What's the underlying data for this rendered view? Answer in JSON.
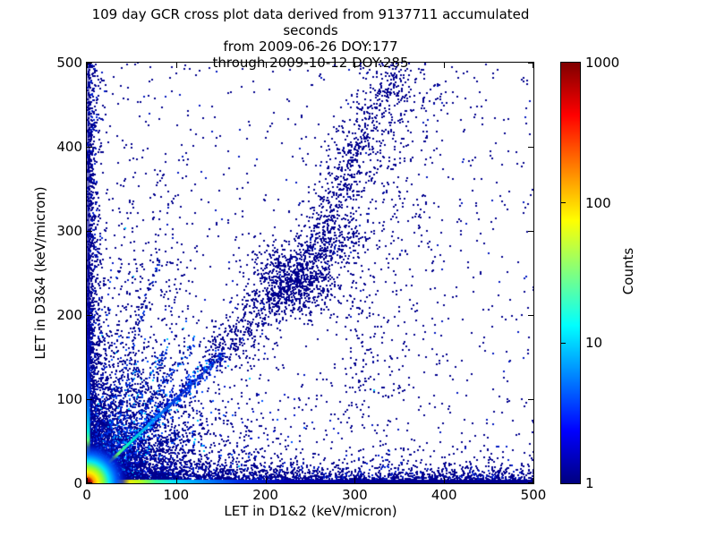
{
  "title": {
    "line1": "109 day GCR cross plot data derived from 9137711 accumulated seconds",
    "line2": "from 2009-06-26 DOY:177",
    "line3": "through 2009-10-12 DOY:285"
  },
  "axes": {
    "xlabel": "LET in D1&2 (keV/micron)",
    "ylabel": "LET in D3&4 (keV/micron)",
    "xticks": [
      "0",
      "100",
      "200",
      "300",
      "400",
      "500"
    ],
    "yticks": [
      "0",
      "100",
      "200",
      "300",
      "400",
      "500"
    ]
  },
  "colorbar": {
    "label": "Counts",
    "ticks": [
      "1000",
      "100",
      "10",
      "1"
    ],
    "colormap": "jet",
    "scale": "log",
    "min": 1,
    "max": 1000
  },
  "chart_data": {
    "type": "heatmap",
    "title": "109 day GCR cross plot data derived from 9137711 accumulated seconds from 2009-06-26 DOY:177 through 2009-10-12 DOY:285",
    "xlabel": "LET in D1&2 (keV/micron)",
    "ylabel": "LET in D3&4 (keV/micron)",
    "xlim": [
      0,
      500
    ],
    "ylim": [
      0,
      500
    ],
    "grid": false,
    "color_scale": {
      "label": "Counts",
      "type": "log",
      "min": 1,
      "max": 1000,
      "colormap": "jet"
    },
    "features": [
      {
        "type": "uniform",
        "n": 980,
        "colors": [
          [
            "#00008E",
            0.9
          ],
          [
            "#0018C0",
            0.1
          ]
        ]
      },
      {
        "type": "exp_cloud",
        "n": 4300,
        "sx": 55,
        "sy": 52,
        "colors": [
          [
            "#00008E",
            0.8
          ],
          [
            "#0016C8",
            0.13
          ],
          [
            "#0050FF",
            0.05
          ],
          [
            "#00C8FF",
            0.02
          ]
        ]
      },
      {
        "type": "exp_cloud",
        "n": 2700,
        "sx": 17,
        "sy": 16,
        "colors": [
          [
            "#0000A0",
            0.5
          ],
          [
            "#0020DC",
            0.27
          ],
          [
            "#0064FF",
            0.15
          ],
          [
            "#00C8FF",
            0.08
          ]
        ]
      },
      {
        "type": "edge_x",
        "n": 2600,
        "yscale": 8,
        "xpow": 1.35,
        "colors": [
          [
            "#00008E",
            0.85
          ],
          [
            "#0020D0",
            0.15
          ]
        ]
      },
      {
        "type": "edge_y",
        "n": 1600,
        "xscale": 5,
        "ypow": 1.6,
        "colors": [
          [
            "#00008E",
            0.85
          ],
          [
            "#0020D0",
            0.15
          ]
        ]
      },
      {
        "type": "band",
        "from": [
          15,
          15
        ],
        "to": [
          150,
          152
        ],
        "sigma": 5,
        "tpow": 1.2,
        "n": 650,
        "colors": [
          [
            "#0010C0",
            0.45
          ],
          [
            "#0048FF",
            0.3
          ],
          [
            "#00A8FF",
            0.15
          ],
          [
            "#00008E",
            0.1
          ]
        ]
      },
      {
        "type": "band",
        "from": [
          140,
          146
        ],
        "to": [
          290,
          298
        ],
        "sigma": 13,
        "tpow": 1,
        "n": 640,
        "colors": [
          [
            "#00008E",
            0.92
          ],
          [
            "#0020C8",
            0.08
          ]
        ]
      },
      {
        "type": "blob",
        "cx": 231,
        "cy": 237,
        "sx": 26,
        "sy": 21,
        "n": 700,
        "colors": [
          [
            "#00008E",
            1
          ]
        ]
      },
      {
        "type": "band",
        "from": [
          252,
          262
        ],
        "to": [
          300,
          400
        ],
        "sigma": 12,
        "tpow": 1,
        "n": 380,
        "colors": [
          [
            "#00008E",
            1
          ]
        ]
      },
      {
        "type": "band",
        "from": [
          300,
          400
        ],
        "to": [
          348,
          500
        ],
        "sigma": 13,
        "tpow": 1,
        "n": 230,
        "colors": [
          [
            "#00008E",
            1
          ]
        ]
      },
      {
        "type": "band",
        "from": [
          280,
          300
        ],
        "to": [
          372,
          500
        ],
        "sigma": 32,
        "tpow": 1,
        "n": 240,
        "colors": [
          [
            "#00008E",
            1
          ]
        ]
      },
      {
        "type": "ray",
        "slope": 1.38,
        "len": 210,
        "sigma": 2.6,
        "tpow": 1.5,
        "n": 230,
        "colors": [
          [
            "#000FA0",
            0.55
          ],
          [
            "#0038E6",
            0.33
          ],
          [
            "#0096FF",
            0.12
          ]
        ]
      },
      {
        "type": "ray",
        "slope": 1.8,
        "len": 185,
        "sigma": 2.4,
        "tpow": 1.5,
        "n": 190,
        "colors": [
          [
            "#000FA0",
            0.55
          ],
          [
            "#0038E6",
            0.33
          ],
          [
            "#0096FF",
            0.12
          ]
        ]
      },
      {
        "type": "ray",
        "slope": 2.45,
        "len": 160,
        "sigma": 2.2,
        "tpow": 1.5,
        "n": 150,
        "colors": [
          [
            "#000FA0",
            0.55
          ],
          [
            "#0038E6",
            0.33
          ],
          [
            "#0096FF",
            0.12
          ]
        ]
      },
      {
        "type": "ray",
        "slope": 3.3,
        "len": 280,
        "sigma": 2.2,
        "tpow": 1.6,
        "n": 160,
        "colors": [
          [
            "#000FA0",
            0.7
          ],
          [
            "#0038E6",
            0.3
          ]
        ]
      },
      {
        "type": "ray",
        "slope": 0.56,
        "len": 130,
        "sigma": 2.5,
        "tpow": 1.3,
        "n": 110,
        "colors": [
          [
            "#000FA0",
            1
          ]
        ]
      },
      {
        "type": "vband",
        "cx": 50,
        "sx": 9,
        "y0": 100,
        "y1": 430,
        "n": 90,
        "colors": [
          [
            "#00008E",
            1
          ]
        ]
      },
      {
        "type": "vband",
        "cx": 95,
        "sx": 12,
        "y0": 80,
        "y1": 390,
        "n": 95,
        "colors": [
          [
            "#00008E",
            1
          ]
        ]
      },
      {
        "type": "vband",
        "cx": 305,
        "sx": 10,
        "y0": 60,
        "y1": 300,
        "n": 110,
        "colors": [
          [
            "#00008E",
            1
          ]
        ]
      },
      {
        "type": "vband",
        "cx": 352,
        "sx": 26,
        "y0": 90,
        "y1": 500,
        "n": 200,
        "colors": [
          [
            "#00008E",
            1
          ]
        ]
      },
      {
        "type": "hbar",
        "h": 4,
        "stops": [
          [
            0,
            "#DC0000"
          ],
          [
            0.022,
            "#FF6400"
          ],
          [
            0.05,
            "#FFAA00"
          ],
          [
            0.085,
            "#FFE600"
          ],
          [
            0.12,
            "#B4FF1E"
          ],
          [
            0.155,
            "#32FFA0"
          ],
          [
            0.2,
            "#00DCFF"
          ],
          [
            0.27,
            "#0082FF"
          ],
          [
            0.34,
            "#002CE6"
          ],
          [
            0.45,
            "#0000B4"
          ],
          [
            0.65,
            "#000096"
          ],
          [
            1,
            "#000092"
          ]
        ]
      },
      {
        "type": "vbar",
        "w": 3.5,
        "stops": [
          [
            0,
            "#E64600"
          ],
          [
            0.022,
            "#FF9600"
          ],
          [
            0.05,
            "#FFE600"
          ],
          [
            0.085,
            "#96FF32"
          ],
          [
            0.125,
            "#00E6DC"
          ],
          [
            0.18,
            "#0078FF"
          ],
          [
            0.26,
            "#0028DC"
          ],
          [
            0.36,
            "rgba(0,0,165,0.95)"
          ],
          [
            0.55,
            "rgba(0,0,150,0.7)"
          ],
          [
            0.8,
            "rgba(0,0,145,0.5)"
          ],
          [
            1,
            "rgba(0,0,145,0.4)"
          ]
        ]
      },
      {
        "type": "diag",
        "from": [
          98,
          98
        ],
        "to": [
          152,
          152
        ],
        "w": 2.4,
        "stops": [
          [
            0,
            "#0032DC"
          ],
          [
            1,
            "rgba(0,30,190,0.4)"
          ]
        ]
      },
      {
        "type": "diag",
        "from": [
          4,
          4
        ],
        "to": [
          102,
          102
        ],
        "w": 3.2,
        "stops": [
          [
            0,
            "#FFD700"
          ],
          [
            0.2,
            "#B4FF28"
          ],
          [
            0.45,
            "#00F0D2"
          ],
          [
            0.7,
            "#0096FF"
          ],
          [
            1,
            "#0032DC"
          ]
        ]
      },
      {
        "type": "corner_glow",
        "r": 48,
        "stops": [
          [
            0,
            "#C80000"
          ],
          [
            0.08,
            "#FF3200"
          ],
          [
            0.16,
            "#FF9600"
          ],
          [
            0.26,
            "#FFF000"
          ],
          [
            0.38,
            "#8CFF32"
          ],
          [
            0.52,
            "#00E6FA"
          ],
          [
            0.68,
            "#0064FF"
          ],
          [
            0.84,
            "rgba(0,30,210,0.75)"
          ],
          [
            1,
            "rgba(0,0,150,0)"
          ]
        ]
      },
      {
        "type": "corner_glow",
        "r": 8,
        "stops": [
          [
            0,
            "#780000"
          ],
          [
            0.5,
            "#A00000"
          ],
          [
            1,
            "rgba(160,0,0,0)"
          ]
        ]
      }
    ]
  }
}
